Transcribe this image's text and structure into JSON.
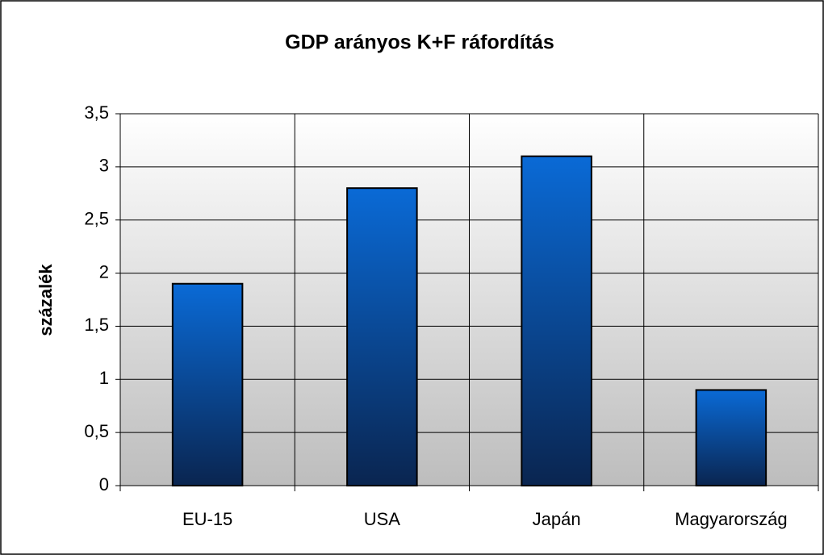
{
  "chart_data": {
    "type": "bar",
    "title": "GDP arányos K+F ráfordítás",
    "y_label": "százalék",
    "categories": [
      "EU-15",
      "USA",
      "Japán",
      "Magyarország"
    ],
    "values": [
      1.9,
      2.8,
      3.1,
      0.9
    ],
    "color": "#0066cc",
    "ylim": [
      0,
      3.5
    ],
    "yticks": [
      0,
      {
        "value": 0.5,
        "label": "0,5"
      },
      1,
      {
        "value": 1.5,
        "label": "1,5"
      },
      2,
      {
        "value": 2.5,
        "label": "2,5"
      },
      3,
      {
        "value": 3.5,
        "label": "3,5"
      }
    ],
    "grid": true
  }
}
